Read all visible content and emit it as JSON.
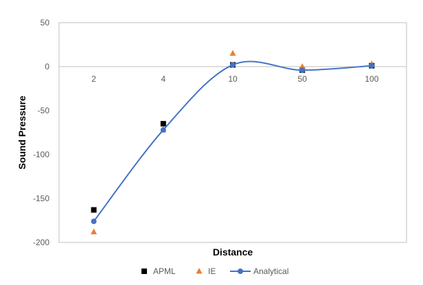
{
  "chart_data": {
    "type": "line",
    "categories": [
      "2",
      "4",
      "10",
      "50",
      "100"
    ],
    "xlabel": "Distance",
    "ylabel": "Sound Pressure",
    "ylim": [
      -200,
      50
    ],
    "yticks": [
      50,
      0,
      -50,
      -100,
      -150,
      -200
    ],
    "grid": false,
    "legend_position": "bottom",
    "series": [
      {
        "name": "APML",
        "marker": "square",
        "color": "#000000",
        "line": false,
        "values": [
          -163,
          -65,
          2,
          -4,
          1
        ]
      },
      {
        "name": "IE",
        "marker": "triangle",
        "color": "#ED7D31",
        "line": false,
        "values": [
          -188,
          -72,
          15,
          0,
          3
        ]
      },
      {
        "name": "Analytical",
        "marker": "circle",
        "color": "#4472C4",
        "line": true,
        "smooth": true,
        "values": [
          -176,
          -72,
          2,
          -4,
          1
        ]
      }
    ]
  }
}
